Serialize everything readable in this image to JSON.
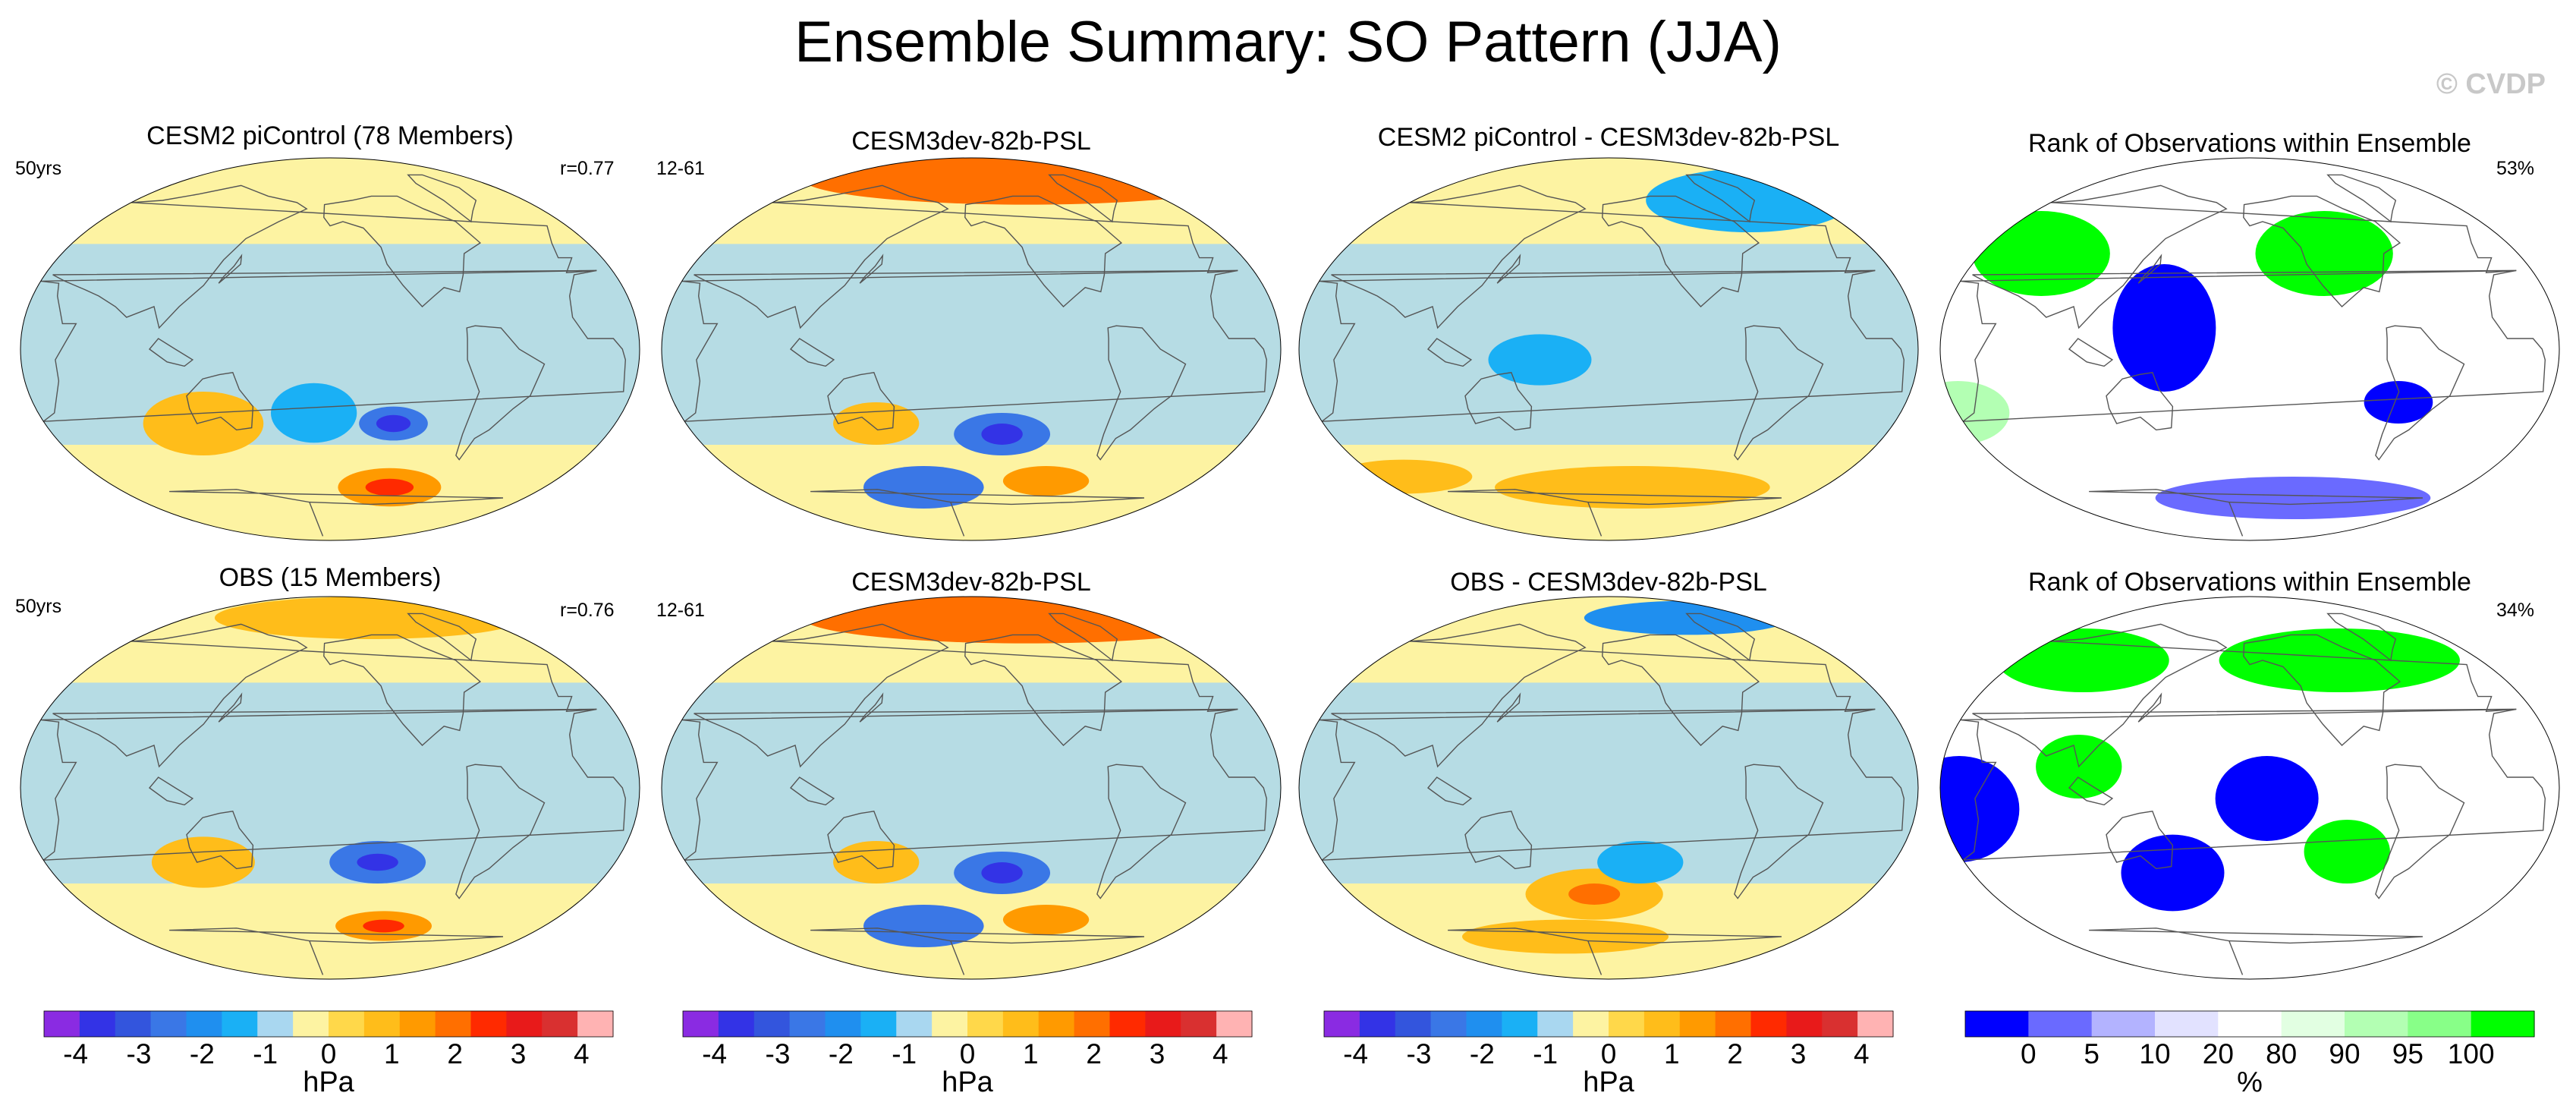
{
  "figure": {
    "title": "Ensemble Summary: SO Pattern (JJA)",
    "watermark": "© CVDP"
  },
  "colors": {
    "psl_scale": [
      "#8a2be2",
      "#3333e6",
      "#3355dd",
      "#3a77e6",
      "#1f8fef",
      "#1ab0f5",
      "#a9d7f0",
      "#fdf3a2",
      "#ffd84a",
      "#ffbd1a",
      "#ff9a00",
      "#ff6f00",
      "#ff2a00",
      "#e81a1a",
      "#d93030",
      "#ffb3b3"
    ],
    "rank_scale": [
      "#0000ff",
      "#6a6aff",
      "#b3b3ff",
      "#e2e2ff",
      "#ffffff",
      "#e2ffe2",
      "#b3ffb3",
      "#88ff88",
      "#00ff00"
    ],
    "land_outline": "#555555"
  },
  "chart_data": [
    {
      "type": "heatmap",
      "id": "p1",
      "title": "CESM2 piControl (78 Members)",
      "left_label": "50yrs",
      "right_label": "r=0.77",
      "units": "hPa",
      "palette": "psl",
      "features": [
        {
          "lon": -120,
          "lat": -35,
          "rx": 20,
          "ry": 8,
          "level": -2
        },
        {
          "lon": -120,
          "lat": -35,
          "rx": 10,
          "ry": 4,
          "level": -3
        },
        {
          "lon": -110,
          "lat": -65,
          "rx": 30,
          "ry": 9,
          "level": 1.5
        },
        {
          "lon": -110,
          "lat": -65,
          "rx": 14,
          "ry": 4,
          "level": 2.5
        },
        {
          "lon": -170,
          "lat": -30,
          "rx": 25,
          "ry": 14,
          "level": -1
        },
        {
          "lon": 120,
          "lat": -35,
          "rx": 35,
          "ry": 15,
          "level": 1
        }
      ]
    },
    {
      "type": "heatmap",
      "id": "p2",
      "title": "CESM3dev-82b-PSL",
      "left_label": "12-61",
      "right_label": "",
      "units": "hPa",
      "palette": "psl",
      "features": [
        {
          "lon": -90,
          "lat": 80,
          "rx": 130,
          "ry": 12,
          "level": 2
        },
        {
          "lon": -140,
          "lat": -40,
          "rx": 28,
          "ry": 10,
          "level": -2
        },
        {
          "lon": -140,
          "lat": -40,
          "rx": 12,
          "ry": 5,
          "level": -3
        },
        {
          "lon": -100,
          "lat": -62,
          "rx": 25,
          "ry": 7,
          "level": 1.5
        },
        {
          "lon": 160,
          "lat": -65,
          "rx": 35,
          "ry": 10,
          "level": -2
        },
        {
          "lon": 140,
          "lat": -35,
          "rx": 25,
          "ry": 10,
          "level": 1
        }
      ]
    },
    {
      "type": "heatmap",
      "id": "p3",
      "title": "CESM2 piControl - CESM3dev-82b-PSL",
      "left_label": "",
      "right_label": "",
      "units": "hPa",
      "palette": "psl",
      "features": [
        {
          "lon": -30,
          "lat": 70,
          "rx": 60,
          "ry": 15,
          "level": -1
        },
        {
          "lon": -140,
          "lat": -65,
          "rx": 80,
          "ry": 10,
          "level": 1
        },
        {
          "lon": 160,
          "lat": -5,
          "rx": 30,
          "ry": 12,
          "level": -1
        },
        {
          "lon": 40,
          "lat": -60,
          "rx": 40,
          "ry": 8,
          "level": 1
        }
      ]
    },
    {
      "type": "heatmap",
      "id": "p4",
      "title": "Rank of Observations within Ensemble",
      "left_label": "",
      "right_label": "53%",
      "units": "%",
      "palette": "rank",
      "features": [
        {
          "lon": 150,
          "lat": 10,
          "rx": 30,
          "ry": 30,
          "level": 0
        },
        {
          "lon": -110,
          "lat": 45,
          "rx": 40,
          "ry": 20,
          "level": 100
        },
        {
          "lon": 60,
          "lat": 45,
          "rx": 40,
          "ry": 20,
          "level": 100
        },
        {
          "lon": -120,
          "lat": -70,
          "rx": 80,
          "ry": 10,
          "level": 5
        },
        {
          "lon": -70,
          "lat": -25,
          "rx": 20,
          "ry": 10,
          "level": 0
        },
        {
          "lon": 20,
          "lat": -30,
          "rx": 30,
          "ry": 15,
          "level": 90
        }
      ]
    },
    {
      "type": "heatmap",
      "id": "p5",
      "title": "OBS (15 Members)",
      "left_label": "50yrs",
      "right_label": "r=0.76",
      "units": "hPa",
      "palette": "psl",
      "features": [
        {
          "lon": -110,
          "lat": 80,
          "rx": 90,
          "ry": 10,
          "level": 1
        },
        {
          "lon": -130,
          "lat": -35,
          "rx": 28,
          "ry": 10,
          "level": -2
        },
        {
          "lon": -130,
          "lat": -35,
          "rx": 12,
          "ry": 4,
          "level": -3
        },
        {
          "lon": -115,
          "lat": -65,
          "rx": 28,
          "ry": 7,
          "level": 1.5
        },
        {
          "lon": -115,
          "lat": -65,
          "rx": 12,
          "ry": 3,
          "level": 2.5
        },
        {
          "lon": 120,
          "lat": -35,
          "rx": 30,
          "ry": 12,
          "level": 1
        }
      ]
    },
    {
      "type": "heatmap",
      "id": "p6",
      "title": "CESM3dev-82b-PSL",
      "left_label": "12-61",
      "right_label": "",
      "units": "hPa",
      "palette": "psl",
      "features": [
        {
          "lon": -90,
          "lat": 80,
          "rx": 130,
          "ry": 12,
          "level": 2
        },
        {
          "lon": -140,
          "lat": -40,
          "rx": 28,
          "ry": 10,
          "level": -2
        },
        {
          "lon": -140,
          "lat": -40,
          "rx": 12,
          "ry": 5,
          "level": -3
        },
        {
          "lon": -100,
          "lat": -62,
          "rx": 25,
          "ry": 7,
          "level": 1.5
        },
        {
          "lon": 160,
          "lat": -65,
          "rx": 35,
          "ry": 10,
          "level": -2
        },
        {
          "lon": 140,
          "lat": -35,
          "rx": 25,
          "ry": 10,
          "level": 1
        }
      ]
    },
    {
      "type": "heatmap",
      "id": "p7",
      "title": "OBS - CESM3dev-82b-PSL",
      "left_label": "",
      "right_label": "",
      "units": "hPa",
      "palette": "psl",
      "features": [
        {
          "lon": -60,
          "lat": 80,
          "rx": 60,
          "ry": 8,
          "level": -1.5
        },
        {
          "lon": -170,
          "lat": -50,
          "rx": 40,
          "ry": 12,
          "level": 1
        },
        {
          "lon": -170,
          "lat": -50,
          "rx": 15,
          "ry": 5,
          "level": 2
        },
        {
          "lon": -140,
          "lat": -35,
          "rx": 25,
          "ry": 10,
          "level": -1
        },
        {
          "lon": 160,
          "lat": -70,
          "rx": 60,
          "ry": 8,
          "level": 1
        }
      ]
    },
    {
      "type": "heatmap",
      "id": "p8",
      "title": "Rank of Observations within Ensemble",
      "left_label": "",
      "right_label": "34%",
      "units": "%",
      "palette": "rank",
      "features": [
        {
          "lon": -150,
          "lat": -5,
          "rx": 30,
          "ry": 20,
          "level": 0
        },
        {
          "lon": 150,
          "lat": -40,
          "rx": 30,
          "ry": 18,
          "level": 0
        },
        {
          "lon": 30,
          "lat": -10,
          "rx": 35,
          "ry": 25,
          "level": 0
        },
        {
          "lon": -90,
          "lat": 60,
          "rx": 70,
          "ry": 15,
          "level": 100
        },
        {
          "lon": 70,
          "lat": 60,
          "rx": 50,
          "ry": 15,
          "level": 100
        },
        {
          "lon": -100,
          "lat": -30,
          "rx": 25,
          "ry": 15,
          "level": 100
        },
        {
          "lon": 100,
          "lat": 10,
          "rx": 25,
          "ry": 15,
          "level": 100
        }
      ]
    }
  ],
  "colorbars": [
    {
      "id": "cb1",
      "kind": "psl",
      "units": "hPa",
      "tick_labels": [
        "-4",
        "-3",
        "-2",
        "-1",
        "0",
        "1",
        "2",
        "3",
        "4"
      ]
    },
    {
      "id": "cb2",
      "kind": "psl",
      "units": "hPa",
      "tick_labels": [
        "-4",
        "-3",
        "-2",
        "-1",
        "0",
        "1",
        "2",
        "3",
        "4"
      ]
    },
    {
      "id": "cb3",
      "kind": "psl",
      "units": "hPa",
      "tick_labels": [
        "-4",
        "-3",
        "-2",
        "-1",
        "0",
        "1",
        "2",
        "3",
        "4"
      ]
    },
    {
      "id": "cb4",
      "kind": "rank",
      "units": "%",
      "tick_labels": [
        "0",
        "5",
        "10",
        "20",
        "80",
        "90",
        "95",
        "100"
      ]
    }
  ]
}
